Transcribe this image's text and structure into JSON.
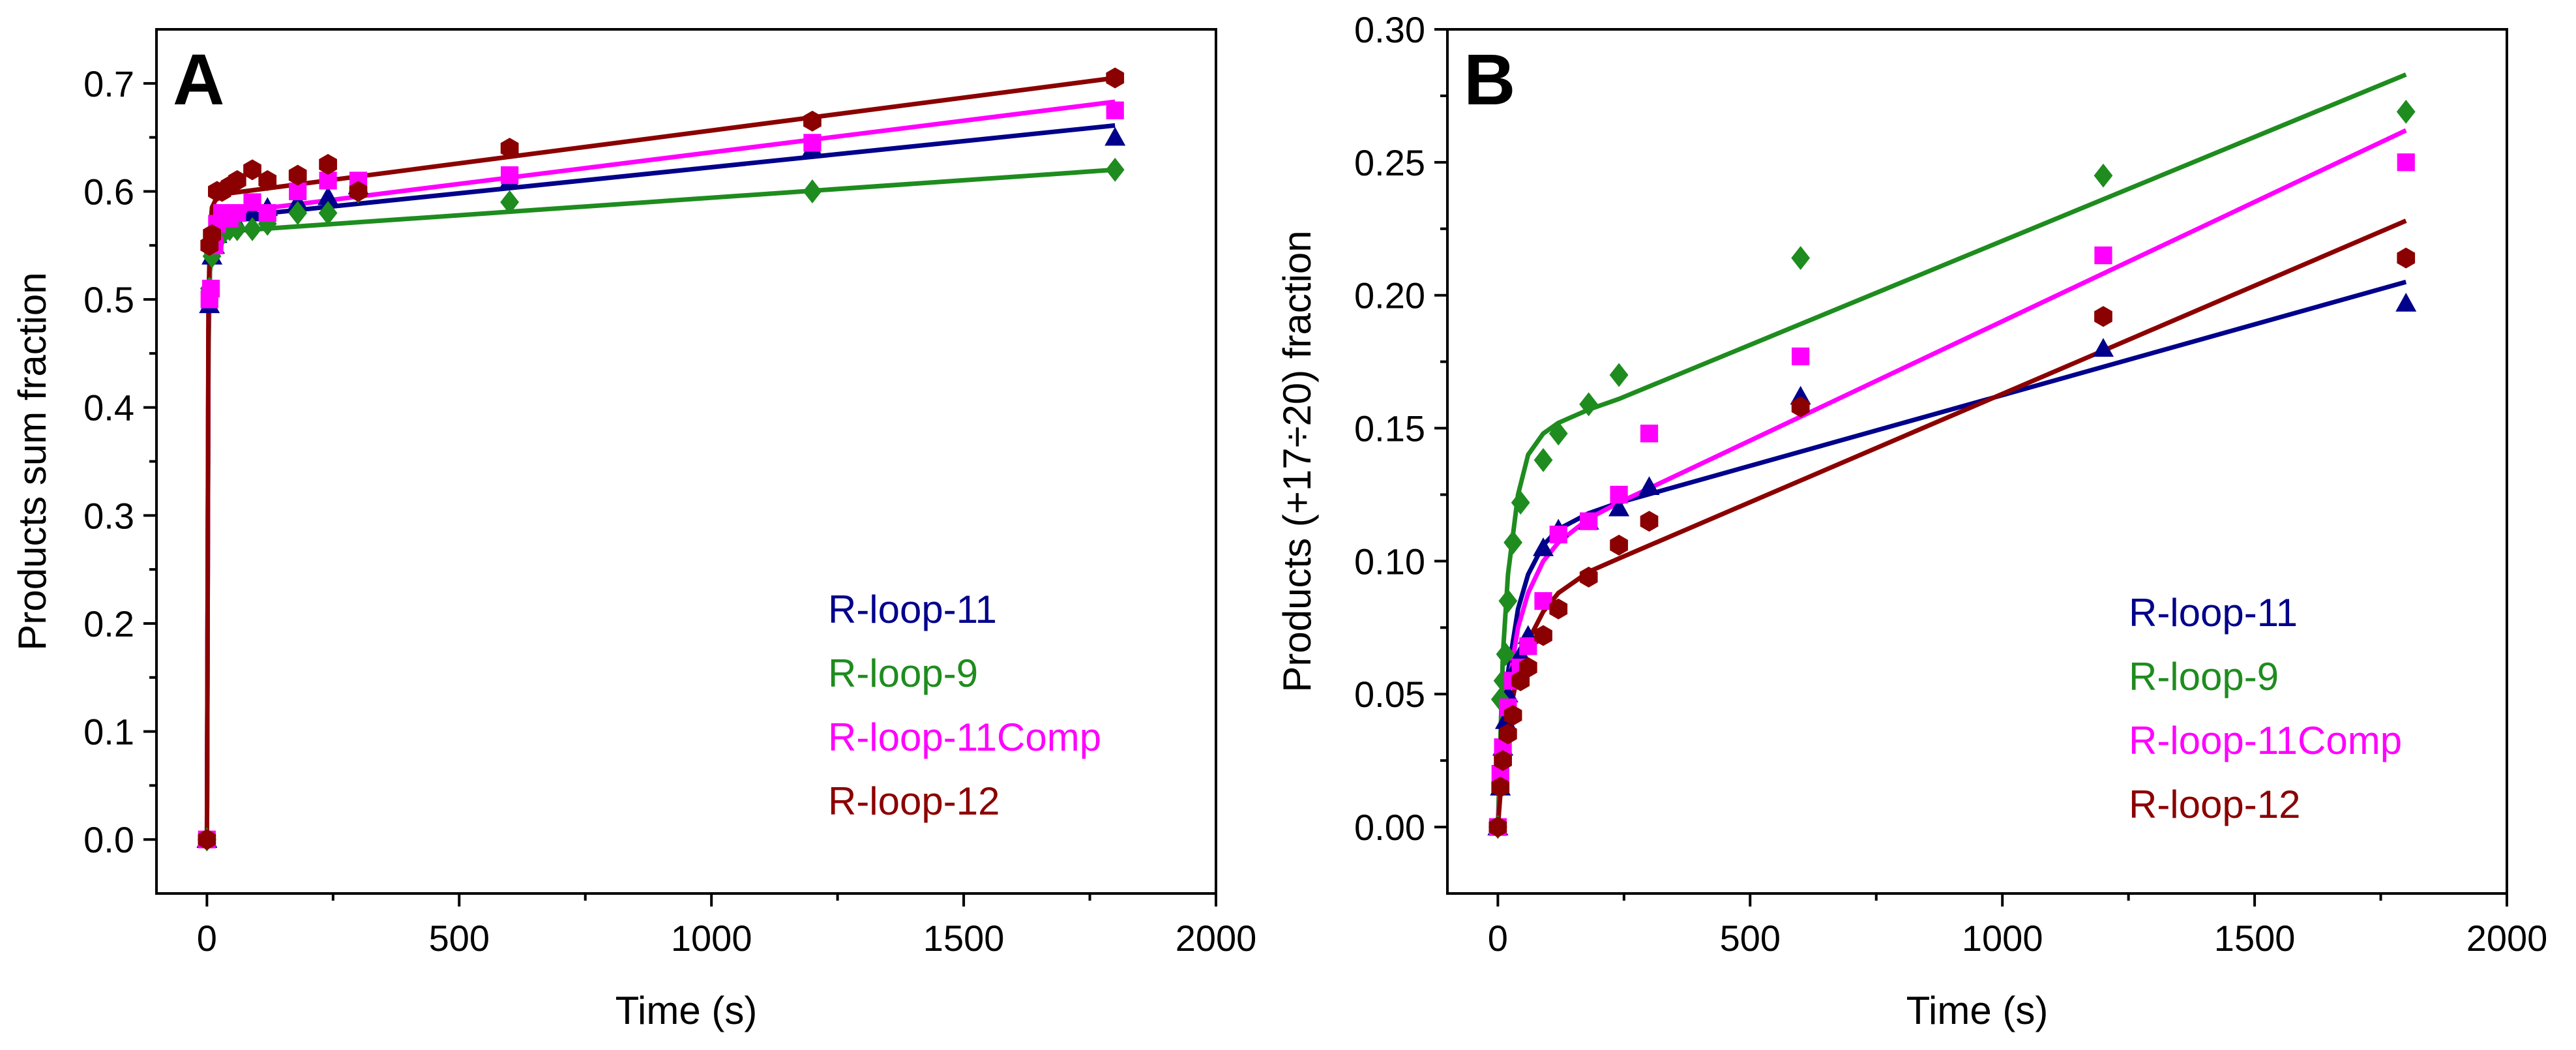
{
  "chart_data": [
    {
      "panel": "A",
      "type": "scatter",
      "xlabel": "Time (s)",
      "ylabel": "Products sum fraction",
      "xlim": [
        -100,
        2000
      ],
      "ylim": [
        -0.05,
        0.75
      ],
      "xticks": [
        0,
        500,
        1000,
        1500,
        2000
      ],
      "xtick_labels": [
        "0",
        "500",
        "1000",
        "1500",
        "2000"
      ],
      "yticks": [
        0.0,
        0.1,
        0.2,
        0.3,
        0.4,
        0.5,
        0.6,
        0.7
      ],
      "ytick_labels": [
        "0.0",
        "0.1",
        "0.2",
        "0.3",
        "0.4",
        "0.5",
        "0.6",
        "0.7"
      ],
      "legend_position": "bottom-right",
      "series": [
        {
          "name": "R-loop-11",
          "color": "#00008B",
          "marker": "triangle",
          "points": [
            [
              0,
              0.0
            ],
            [
              5,
              0.495
            ],
            [
              10,
              0.54
            ],
            [
              15,
              0.55
            ],
            [
              20,
              0.56
            ],
            [
              30,
              0.565
            ],
            [
              45,
              0.57
            ],
            [
              60,
              0.57
            ],
            [
              90,
              0.58
            ],
            [
              120,
              0.585
            ],
            [
              180,
              0.59
            ],
            [
              240,
              0.595
            ],
            [
              300,
              0.605
            ],
            [
              600,
              0.61
            ],
            [
              1200,
              0.64
            ],
            [
              1800,
              0.65
            ]
          ],
          "fit": [
            [
              0,
              0.0
            ],
            [
              3,
              0.46
            ],
            [
              6,
              0.53
            ],
            [
              10,
              0.556
            ],
            [
              20,
              0.571
            ],
            [
              40,
              0.576
            ],
            [
              1800,
              0.661
            ]
          ]
        },
        {
          "name": "R-loop-9",
          "color": "#1E8C1E",
          "marker": "diamond",
          "points": [
            [
              0,
              0.0
            ],
            [
              5,
              0.51
            ],
            [
              10,
              0.54
            ],
            [
              15,
              0.55
            ],
            [
              20,
              0.555
            ],
            [
              30,
              0.56
            ],
            [
              45,
              0.565
            ],
            [
              60,
              0.565
            ],
            [
              90,
              0.565
            ],
            [
              120,
              0.57
            ],
            [
              180,
              0.58
            ],
            [
              240,
              0.58
            ],
            [
              300,
              0.6
            ],
            [
              600,
              0.59
            ],
            [
              1200,
              0.6
            ],
            [
              1800,
              0.62
            ]
          ],
          "fit": [
            [
              0,
              0.0
            ],
            [
              3,
              0.45
            ],
            [
              6,
              0.525
            ],
            [
              10,
              0.55
            ],
            [
              20,
              0.56
            ],
            [
              40,
              0.563
            ],
            [
              1800,
              0.62
            ]
          ]
        },
        {
          "name": "R-loop-11Comp",
          "color": "#FF00FF",
          "marker": "square",
          "points": [
            [
              0,
              0.0
            ],
            [
              5,
              0.5
            ],
            [
              8,
              0.51
            ],
            [
              15,
              0.55
            ],
            [
              20,
              0.57
            ],
            [
              30,
              0.58
            ],
            [
              45,
              0.575
            ],
            [
              60,
              0.58
            ],
            [
              90,
              0.59
            ],
            [
              120,
              0.58
            ],
            [
              180,
              0.6
            ],
            [
              240,
              0.61
            ],
            [
              300,
              0.61
            ],
            [
              600,
              0.615
            ],
            [
              1200,
              0.645
            ],
            [
              1800,
              0.675
            ]
          ],
          "fit": [
            [
              0,
              0.0
            ],
            [
              3,
              0.47
            ],
            [
              6,
              0.545
            ],
            [
              10,
              0.57
            ],
            [
              20,
              0.578
            ],
            [
              40,
              0.58
            ],
            [
              1800,
              0.683
            ]
          ]
        },
        {
          "name": "R-loop-12",
          "color": "#8B0000",
          "marker": "hexagon",
          "points": [
            [
              0,
              0.0
            ],
            [
              5,
              0.55
            ],
            [
              10,
              0.56
            ],
            [
              20,
              0.6
            ],
            [
              30,
              0.6
            ],
            [
              45,
              0.605
            ],
            [
              60,
              0.61
            ],
            [
              90,
              0.62
            ],
            [
              120,
              0.61
            ],
            [
              180,
              0.615
            ],
            [
              240,
              0.625
            ],
            [
              300,
              0.6
            ],
            [
              600,
              0.64
            ],
            [
              1200,
              0.665
            ],
            [
              1800,
              0.705
            ]
          ],
          "fit": [
            [
              0,
              0.0
            ],
            [
              3,
              0.49
            ],
            [
              6,
              0.56
            ],
            [
              10,
              0.585
            ],
            [
              20,
              0.595
            ],
            [
              40,
              0.598
            ],
            [
              1800,
              0.705
            ]
          ]
        }
      ]
    },
    {
      "panel": "B",
      "type": "scatter",
      "xlabel": "Time (s)",
      "ylabel": "Products (+17÷20) fraction",
      "xlim": [
        -100,
        2000
      ],
      "ylim": [
        -0.025,
        0.3
      ],
      "xticks": [
        0,
        500,
        1000,
        1500,
        2000
      ],
      "xtick_labels": [
        "0",
        "500",
        "1000",
        "1500",
        "2000"
      ],
      "yticks": [
        0.0,
        0.05,
        0.1,
        0.15,
        0.2,
        0.25,
        0.3
      ],
      "ytick_labels": [
        "0.00",
        "0.05",
        "0.10",
        "0.15",
        "0.20",
        "0.25",
        "0.30"
      ],
      "legend_position": "bottom-right",
      "series": [
        {
          "name": "R-loop-11",
          "color": "#00008B",
          "marker": "triangle",
          "points": [
            [
              0,
              0.0
            ],
            [
              5,
              0.015
            ],
            [
              10,
              0.03
            ],
            [
              15,
              0.04
            ],
            [
              20,
              0.05
            ],
            [
              30,
              0.058
            ],
            [
              45,
              0.065
            ],
            [
              60,
              0.072
            ],
            [
              90,
              0.105
            ],
            [
              120,
              0.112
            ],
            [
              180,
              0.115
            ],
            [
              240,
              0.12
            ],
            [
              300,
              0.128
            ],
            [
              600,
              0.162
            ],
            [
              1200,
              0.18
            ],
            [
              1800,
              0.197
            ]
          ],
          "fit": [
            [
              0,
              0.0
            ],
            [
              10,
              0.035
            ],
            [
              20,
              0.058
            ],
            [
              40,
              0.082
            ],
            [
              60,
              0.095
            ],
            [
              90,
              0.106
            ],
            [
              120,
              0.112
            ],
            [
              180,
              0.118
            ],
            [
              240,
              0.122
            ],
            [
              1800,
              0.205
            ]
          ]
        },
        {
          "name": "R-loop-9",
          "color": "#1E8C1E",
          "marker": "diamond",
          "points": [
            [
              0,
              0.0
            ],
            [
              5,
              0.048
            ],
            [
              10,
              0.055
            ],
            [
              15,
              0.065
            ],
            [
              20,
              0.085
            ],
            [
              30,
              0.107
            ],
            [
              45,
              0.122
            ],
            [
              90,
              0.138
            ],
            [
              120,
              0.148
            ],
            [
              180,
              0.159
            ],
            [
              240,
              0.17
            ],
            [
              600,
              0.214
            ],
            [
              1200,
              0.245
            ],
            [
              1800,
              0.269
            ]
          ],
          "fit": [
            [
              0,
              0.0
            ],
            [
              10,
              0.065
            ],
            [
              20,
              0.095
            ],
            [
              40,
              0.125
            ],
            [
              60,
              0.14
            ],
            [
              90,
              0.148
            ],
            [
              120,
              0.152
            ],
            [
              180,
              0.157
            ],
            [
              240,
              0.161
            ],
            [
              1800,
              0.283
            ]
          ]
        },
        {
          "name": "R-loop-11Comp",
          "color": "#FF00FF",
          "marker": "square",
          "points": [
            [
              0,
              0.0
            ],
            [
              5,
              0.02
            ],
            [
              10,
              0.03
            ],
            [
              20,
              0.045
            ],
            [
              30,
              0.055
            ],
            [
              45,
              0.06
            ],
            [
              60,
              0.068
            ],
            [
              90,
              0.085
            ],
            [
              120,
              0.11
            ],
            [
              180,
              0.115
            ],
            [
              240,
              0.125
            ],
            [
              300,
              0.148
            ],
            [
              600,
              0.177
            ],
            [
              1200,
              0.215
            ],
            [
              1800,
              0.25
            ]
          ],
          "fit": [
            [
              0,
              0.0
            ],
            [
              10,
              0.033
            ],
            [
              20,
              0.052
            ],
            [
              40,
              0.075
            ],
            [
              60,
              0.088
            ],
            [
              90,
              0.1
            ],
            [
              120,
              0.107
            ],
            [
              180,
              0.116
            ],
            [
              240,
              0.122
            ],
            [
              1800,
              0.262
            ]
          ]
        },
        {
          "name": "R-loop-12",
          "color": "#8B0000",
          "marker": "hexagon",
          "points": [
            [
              0,
              0.0
            ],
            [
              5,
              0.015
            ],
            [
              10,
              0.025
            ],
            [
              20,
              0.035
            ],
            [
              30,
              0.042
            ],
            [
              45,
              0.055
            ],
            [
              60,
              0.06
            ],
            [
              90,
              0.072
            ],
            [
              120,
              0.082
            ],
            [
              180,
              0.094
            ],
            [
              240,
              0.106
            ],
            [
              300,
              0.115
            ],
            [
              600,
              0.158
            ],
            [
              1200,
              0.192
            ],
            [
              1800,
              0.214
            ]
          ],
          "fit": [
            [
              0,
              0.0
            ],
            [
              10,
              0.025
            ],
            [
              20,
              0.04
            ],
            [
              40,
              0.058
            ],
            [
              60,
              0.07
            ],
            [
              90,
              0.081
            ],
            [
              120,
              0.088
            ],
            [
              180,
              0.096
            ],
            [
              240,
              0.101
            ],
            [
              1800,
              0.228
            ]
          ]
        }
      ]
    }
  ]
}
